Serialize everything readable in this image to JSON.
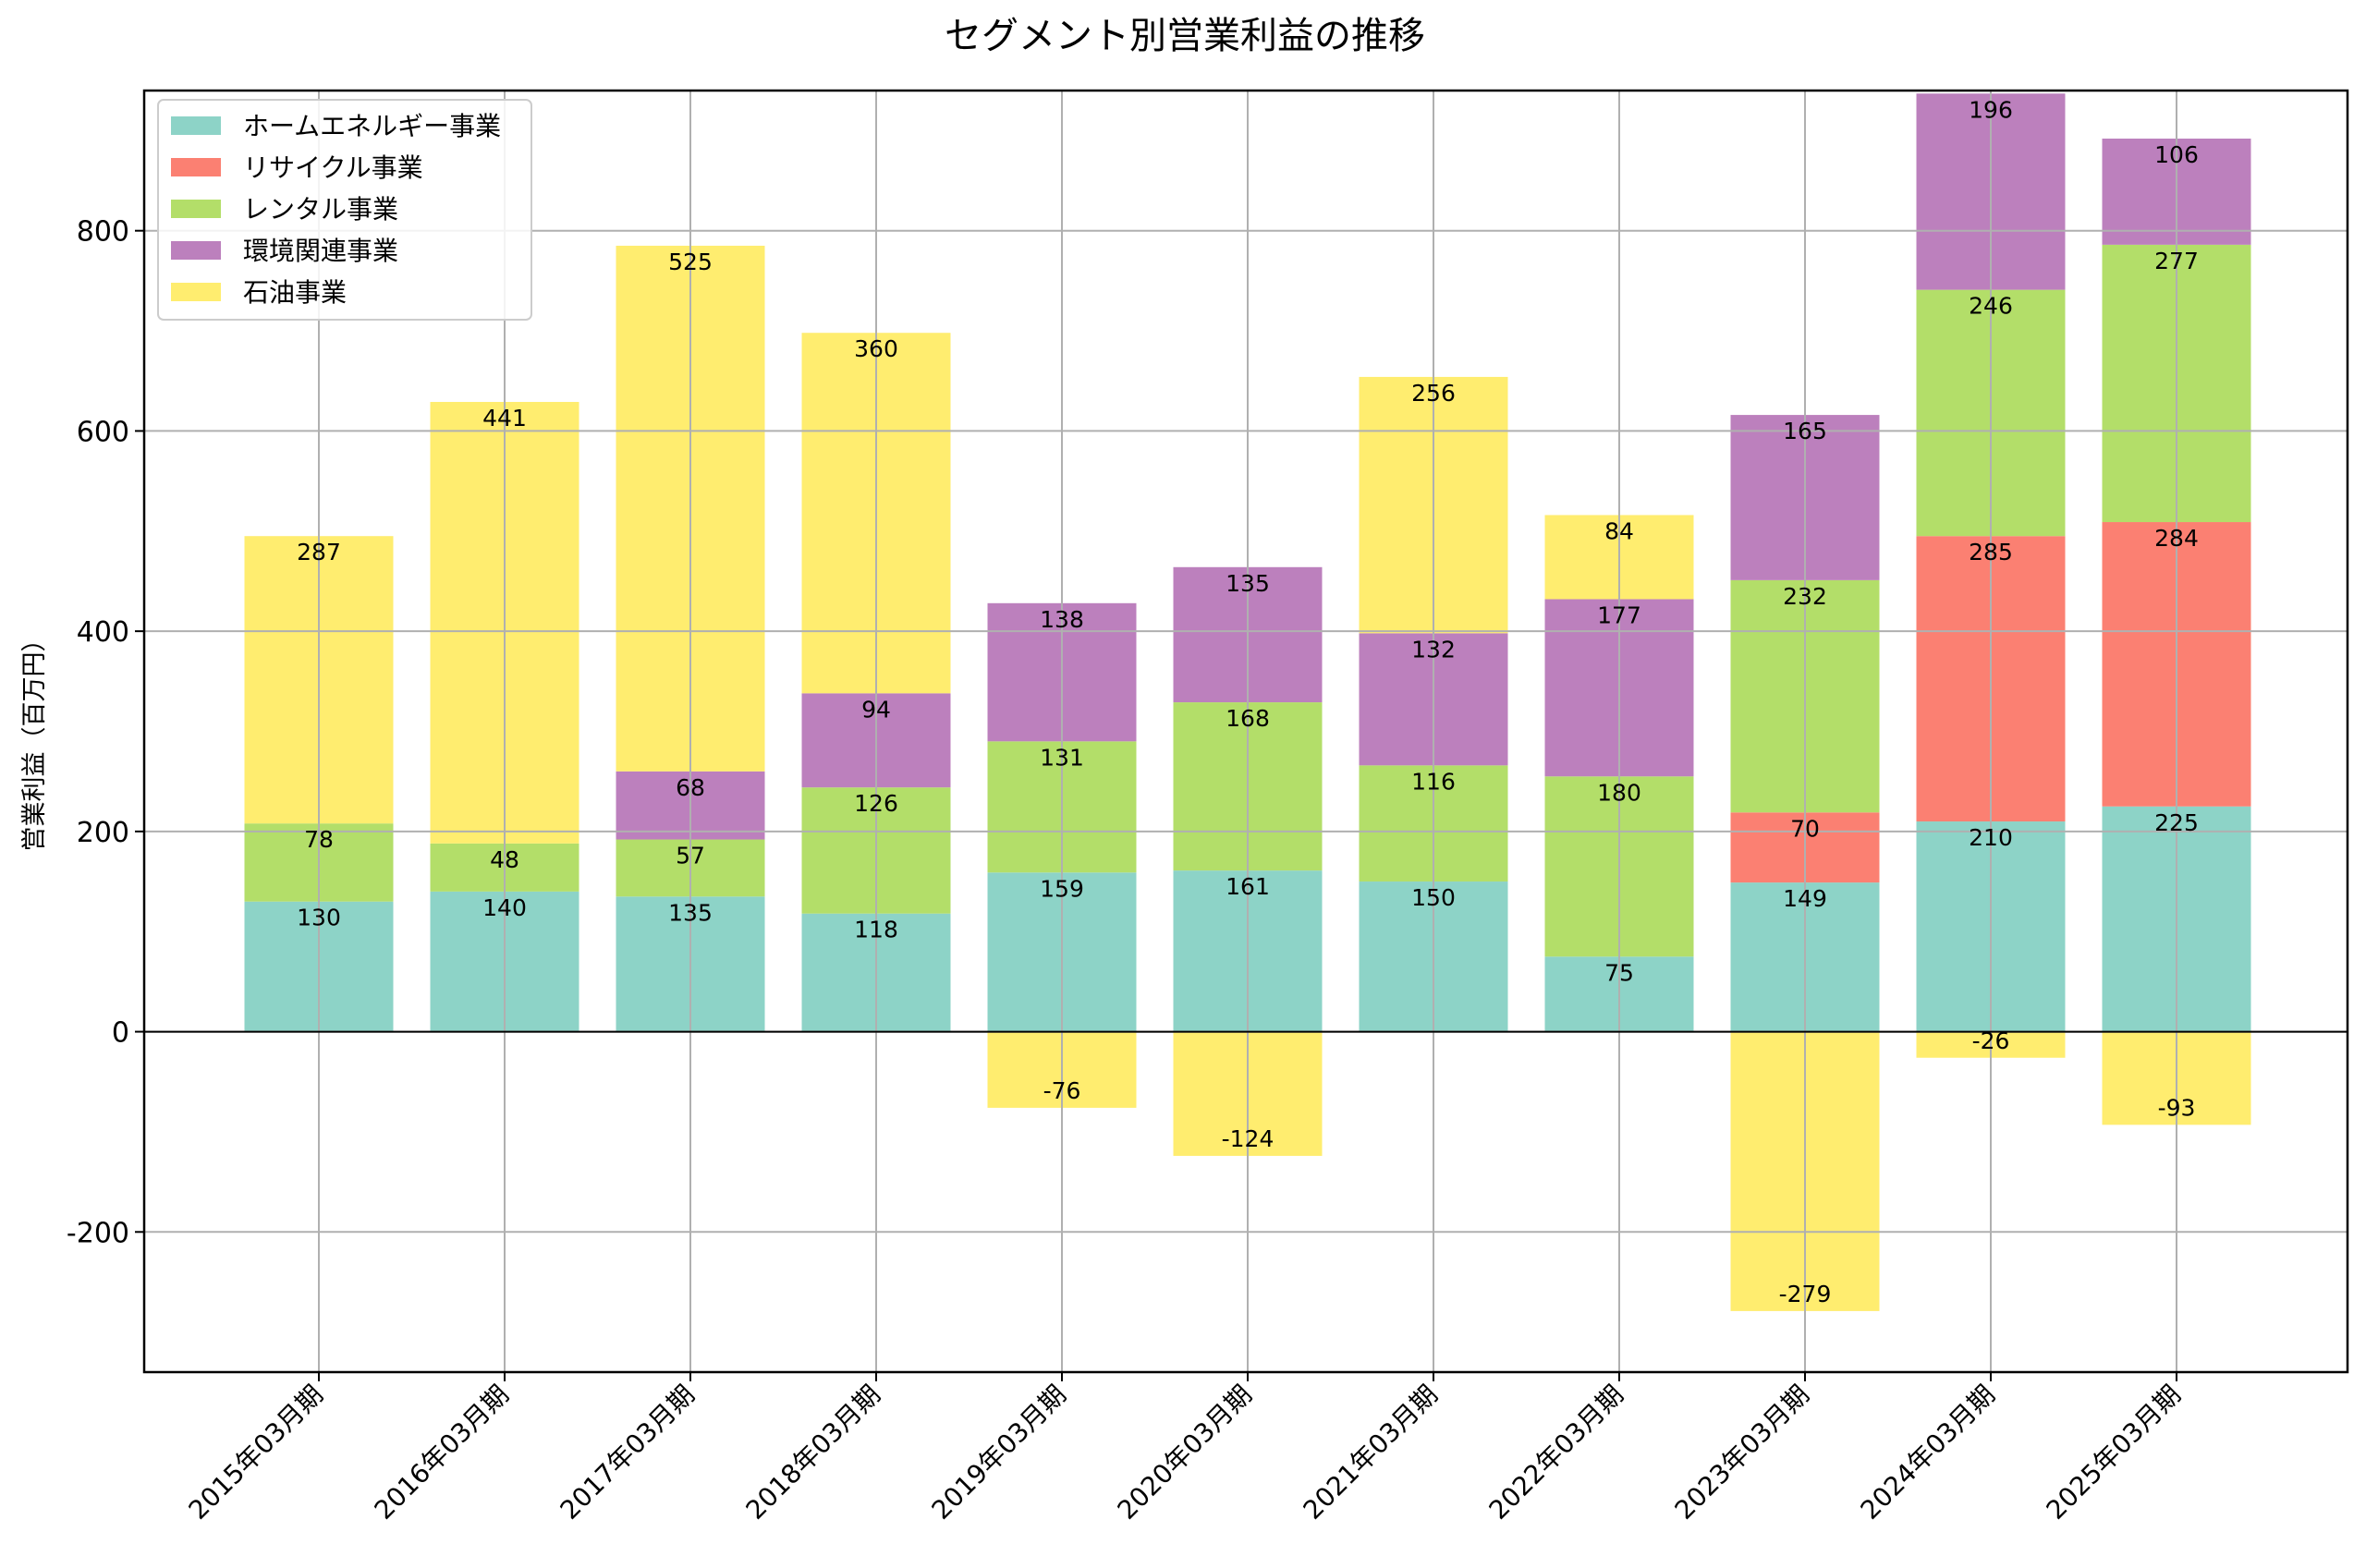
{
  "chart_data": {
    "type": "bar",
    "stacked": true,
    "title": "セグメント別営業利益の推移",
    "xlabel": "",
    "ylabel": "営業利益（百万円）",
    "ylim": [
      -340,
      940
    ],
    "yticks": [
      -200,
      0,
      200,
      400,
      600,
      800
    ],
    "grid": true,
    "legend_position": "top-left",
    "categories": [
      "2015年03月期",
      "2016年03月期",
      "2017年03月期",
      "2018年03月期",
      "2019年03月期",
      "2020年03月期",
      "2021年03月期",
      "2022年03月期",
      "2023年03月期",
      "2024年03月期",
      "2025年03月期"
    ],
    "series": [
      {
        "name": "ホームエネルギー事業",
        "color": "#8dd3c7",
        "values": [
          130,
          140,
          135,
          118,
          159,
          161,
          150,
          75,
          149,
          210,
          225
        ]
      },
      {
        "name": "リサイクル事業",
        "color": "#fb8072",
        "values": [
          null,
          null,
          null,
          null,
          null,
          null,
          null,
          null,
          70,
          285,
          284
        ]
      },
      {
        "name": "レンタル事業",
        "color": "#b3de69",
        "values": [
          78,
          48,
          57,
          126,
          131,
          168,
          116,
          180,
          232,
          246,
          277
        ]
      },
      {
        "name": "環境関連事業",
        "color": "#bc80bd",
        "values": [
          null,
          null,
          68,
          94,
          138,
          135,
          132,
          177,
          165,
          196,
          106
        ]
      },
      {
        "name": "石油事業",
        "color": "#ffed6f",
        "values": [
          287,
          441,
          525,
          360,
          -76,
          -124,
          256,
          84,
          -279,
          -26,
          -93
        ]
      }
    ]
  }
}
